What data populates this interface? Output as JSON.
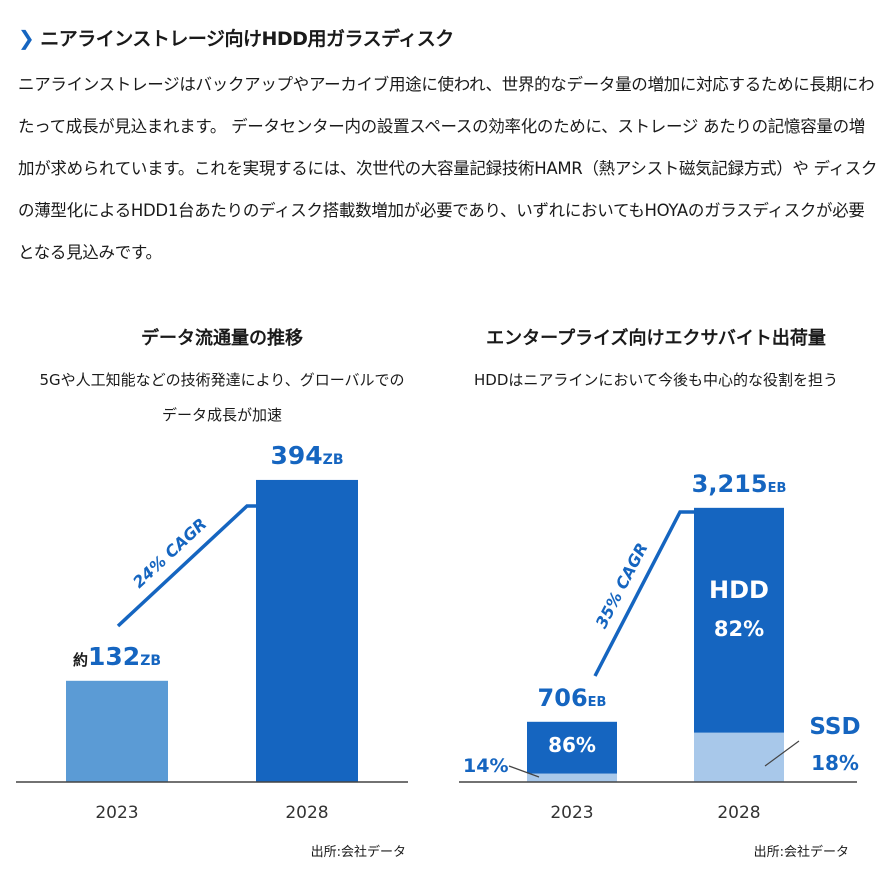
{
  "section": {
    "title": "ニアラインストレージ向けHDD用ガラスディスク",
    "body": "ニアラインストレージはバックアップやアーカイブ用途に使われ、世界的なデータ量の増加に対応するために長期にわたって成長が見込まれます。 データセンター内の設置スペースの効率化のために、ストレージ あたりの記憶容量の増加が求められています。これを実現するには、次世代の大容量記録技術HAMR（熱アシスト磁気記録方式）や ディスクの薄型化によるHDD1台あたりのディスク搭載数増加が必要であり、いずれにおいてもHOYAのガラスディスクが必要となる見込みです。"
  },
  "colors": {
    "accent": "#1565c0",
    "light": "#5b9bd5",
    "pale": "#a8c8ea",
    "axis": "#444444"
  },
  "chart_data": [
    {
      "type": "bar",
      "title": "データ流通量の推移",
      "subtitle": [
        "5Gや人工知能などの技術発達により、グローバルでの",
        "データ成長が加速"
      ],
      "categories": [
        "2023",
        "2028"
      ],
      "values": [
        132,
        394
      ],
      "unit": "ZB",
      "labels": [
        {
          "prefix": "約",
          "value": "132",
          "unit": "ZB"
        },
        {
          "prefix": "",
          "value": "394",
          "unit": "ZB"
        }
      ],
      "annotation": "24% CAGR",
      "ylim": [
        0,
        420
      ],
      "source": "出所:会社データ"
    },
    {
      "type": "bar",
      "stacked": true,
      "title": "エンタープライズ向けエクサバイト出荷量",
      "subtitle": [
        "HDDはニアラインにおいて今後も中心的な役割を担う"
      ],
      "categories": [
        "2023",
        "2028"
      ],
      "totals": [
        706,
        3215
      ],
      "unit": "EB",
      "total_labels": [
        "706",
        "3,215"
      ],
      "series": [
        {
          "name": "HDD",
          "percents": [
            86,
            82
          ],
          "labels": [
            "86%",
            "82%"
          ]
        },
        {
          "name": "SSD",
          "percents": [
            14,
            18
          ],
          "labels": [
            "14%",
            "18%"
          ]
        }
      ],
      "annotation": "35% CAGR",
      "ylim": [
        0,
        3600
      ],
      "source": "出所:会社データ"
    }
  ]
}
